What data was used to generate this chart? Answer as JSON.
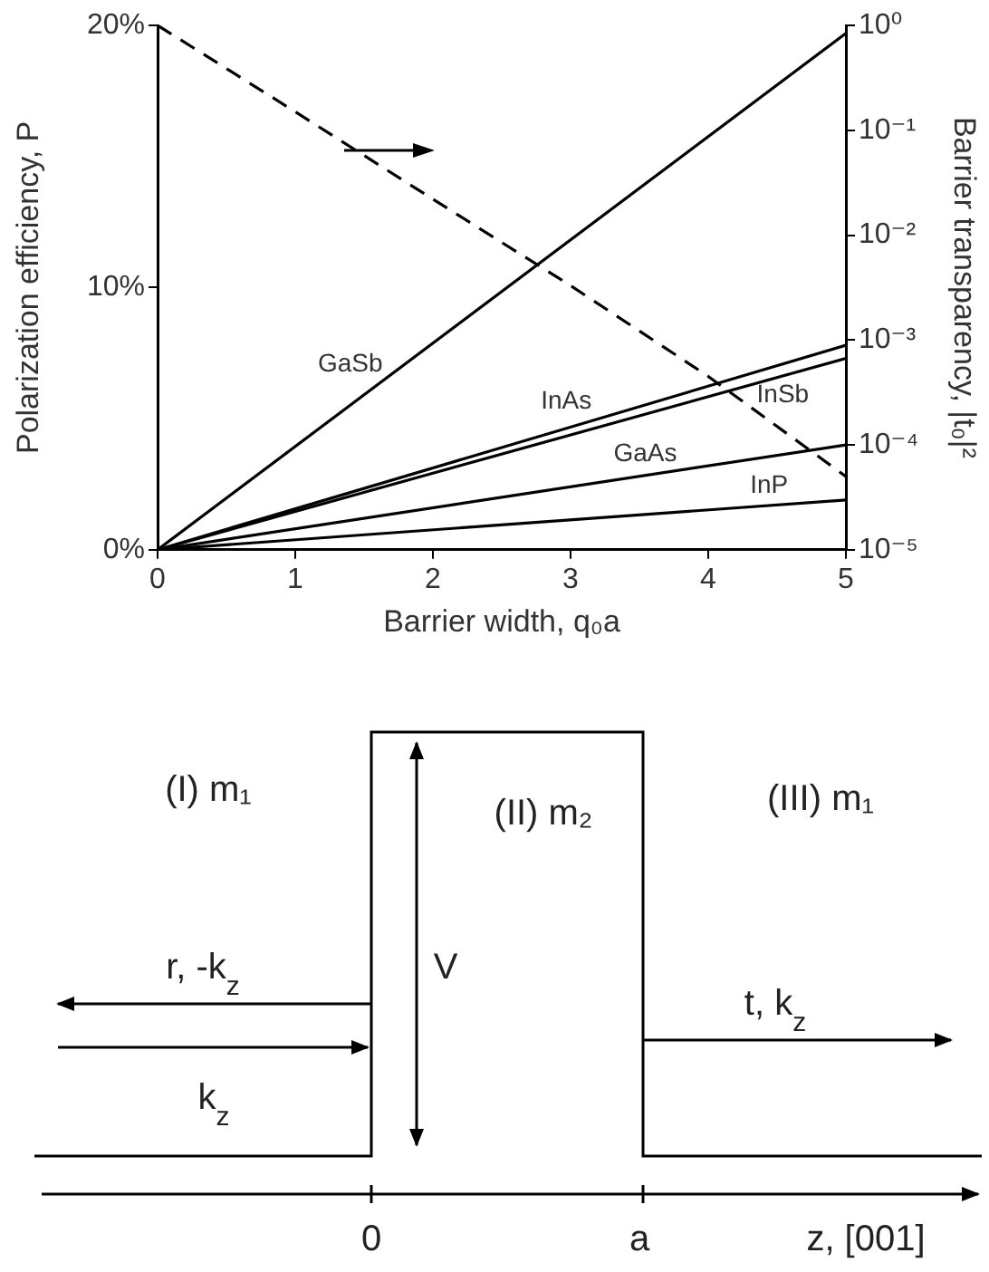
{
  "chart_data": {
    "type": "line",
    "xlabel": "Barrier width, q₀a",
    "ylabel": "Polarization efficiency, P",
    "y2label": "Barrier transparency, |t₀|²",
    "x": [
      0,
      5
    ],
    "series": [
      {
        "name": "GaSb",
        "color": "#000000",
        "values": [
          0,
          19.7
        ]
      },
      {
        "name": "InAs",
        "color": "#000000",
        "values": [
          0,
          7.8
        ]
      },
      {
        "name": "InSb",
        "color": "#000000",
        "values": [
          0,
          7.3
        ]
      },
      {
        "name": "GaAs",
        "color": "#000000",
        "values": [
          0,
          4.0
        ]
      },
      {
        "name": "InP",
        "color": "#000000",
        "values": [
          0,
          1.9
        ]
      },
      {
        "color": "#000000",
        "axis": "y2",
        "line_style": "dashed",
        "x": [
          0,
          1,
          2,
          3,
          4,
          5
        ],
        "values": [
          1,
          0.15,
          0.022,
          0.0033,
          0.00045,
          5e-05
        ]
      }
    ],
    "xlim": [
      0,
      5
    ],
    "xticks": [
      0,
      1,
      2,
      3,
      4,
      5
    ],
    "ylim": [
      0,
      20
    ],
    "yticks": [
      {
        "value": 0,
        "label": "0%"
      },
      {
        "value": 10,
        "label": "10%"
      },
      {
        "value": 20,
        "label": "20%"
      }
    ],
    "y2lim": [
      1e-05,
      1
    ],
    "y2ticks": [
      {
        "value": 1,
        "label": "10⁰"
      },
      {
        "value": 0.1,
        "label": "10⁻¹"
      },
      {
        "value": 0.01,
        "label": "10⁻²"
      },
      {
        "value": 0.001,
        "label": "10⁻³"
      },
      {
        "value": 0.0001,
        "label": "10⁻⁴"
      },
      {
        "value": 1e-05,
        "label": "10⁻⁵"
      }
    ],
    "log": "y2",
    "grid": false,
    "legend": false,
    "marker": "none",
    "line_style": "solid",
    "annotations": [
      "(I) m₁",
      "(II) m₂",
      "(III) m₁",
      "V",
      "r, -k$_{z}$",
      "k$_{z}$",
      "t, k$_{z}$",
      "0",
      "a",
      "z, [001]"
    ]
  }
}
